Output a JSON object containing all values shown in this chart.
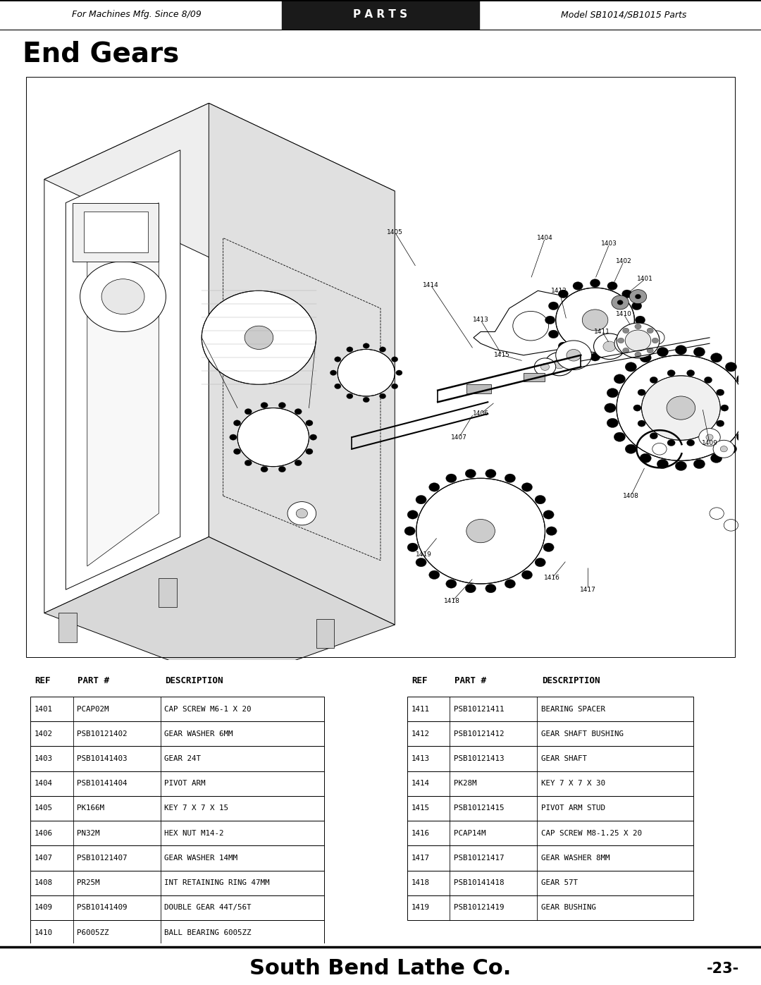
{
  "page_title": "End Gears",
  "header_left": "For Machines Mfg. Since 8/09",
  "header_center": "P A R T S",
  "header_right": "Model SB1014/SB1015 Parts",
  "footer_center": "South Bend Lathe Co.",
  "footer_right": "-23-",
  "bg_color": "#ffffff",
  "header_bg": "#1a1a1a",
  "table_headers": [
    "REF",
    "PART #",
    "DESCRIPTION"
  ],
  "table_left": [
    [
      "1401",
      "PCAP02M",
      "CAP SCREW M6-1 X 20"
    ],
    [
      "1402",
      "PSB10121402",
      "GEAR WASHER 6MM"
    ],
    [
      "1403",
      "PSB10141403",
      "GEAR 24T"
    ],
    [
      "1404",
      "PSB10141404",
      "PIVOT ARM"
    ],
    [
      "1405",
      "PK166M",
      "KEY 7 X 7 X 15"
    ],
    [
      "1406",
      "PN32M",
      "HEX NUT M14-2"
    ],
    [
      "1407",
      "PSB10121407",
      "GEAR WASHER 14MM"
    ],
    [
      "1408",
      "PR25M",
      "INT RETAINING RING 47MM"
    ],
    [
      "1409",
      "PSB10141409",
      "DOUBLE GEAR 44T/56T"
    ],
    [
      "1410",
      "P6005ZZ",
      "BALL BEARING 6005ZZ"
    ]
  ],
  "table_right": [
    [
      "1411",
      "PSB10121411",
      "BEARING SPACER"
    ],
    [
      "1412",
      "PSB10121412",
      "GEAR SHAFT BUSHING"
    ],
    [
      "1413",
      "PSB10121413",
      "GEAR SHAFT"
    ],
    [
      "1414",
      "PK28M",
      "KEY 7 X 7 X 30"
    ],
    [
      "1415",
      "PSB10121415",
      "PIVOT ARM STUD"
    ],
    [
      "1416",
      "PCAP14M",
      "CAP SCREW M8-1.25 X 20"
    ],
    [
      "1417",
      "PSB10121417",
      "GEAR WASHER 8MM"
    ],
    [
      "1418",
      "PSB10141418",
      "GEAR 57T"
    ],
    [
      "1419",
      "PSB10121419",
      "GEAR BUSHING"
    ]
  ],
  "figure_width": 10.8,
  "figure_height": 13.97
}
